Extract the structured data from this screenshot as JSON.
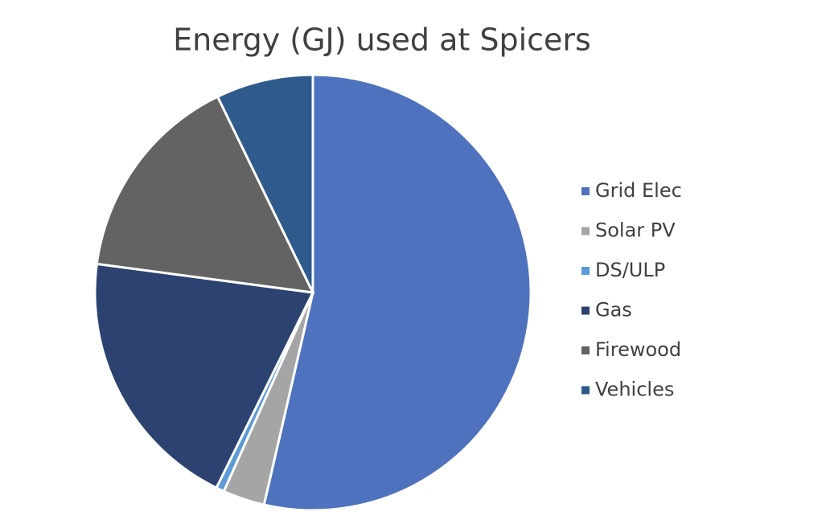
{
  "chart_data": {
    "type": "pie",
    "title": "Energy (GJ) used at Spicers",
    "categories": [
      "Grid Elec",
      "Solar PV",
      "DS/ULP",
      "Gas",
      "Firewood",
      "Vehicles"
    ],
    "values": [
      53.6,
      3.1,
      0.6,
      19.8,
      15.7,
      7.2
    ],
    "colors": [
      "#4e72be",
      "#a5a5a5",
      "#5b9bd5",
      "#2c4271",
      "#636363",
      "#2e5a8c"
    ],
    "legend": "right"
  }
}
